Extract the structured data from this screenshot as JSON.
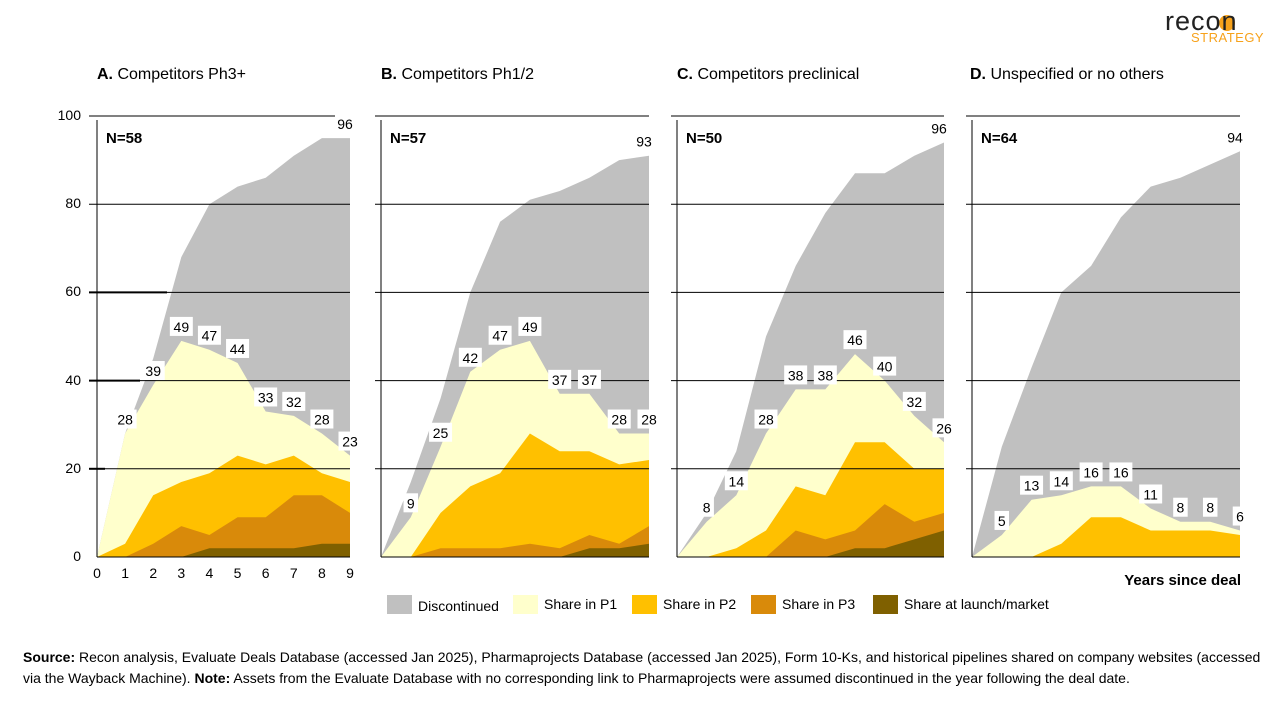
{
  "brand": {
    "wordmark": "recon",
    "tagline": "STRATEGY",
    "sun_color": "#F7A21B"
  },
  "chart_data": {
    "type": "area",
    "stacked": true,
    "x": [
      0,
      1,
      2,
      3,
      4,
      5,
      6,
      7,
      8,
      9
    ],
    "xlabel": "Years since deal",
    "ylim": [
      0,
      100
    ],
    "yticks": [
      0,
      20,
      40,
      60,
      80,
      100
    ],
    "grid": true,
    "legend_position": "bottom",
    "legend": [
      {
        "name": "Discontinued",
        "color": "#C0C0C0"
      },
      {
        "name": "Share in P1",
        "color": "#FFFFCC"
      },
      {
        "name": "Share in P2",
        "color": "#FFC000"
      },
      {
        "name": "Share in P3",
        "color": "#D98A0A"
      },
      {
        "name": "Share at launch/market",
        "color": "#7F6000"
      }
    ],
    "panels": [
      {
        "letter": "A.",
        "title": "Competitors Ph3+",
        "n_label": "N=58",
        "total": [
          0,
          28,
          45,
          68,
          80,
          84,
          86,
          91,
          95,
          95
        ],
        "active": [
          0,
          28,
          39,
          49,
          47,
          44,
          33,
          32,
          28,
          23
        ],
        "p2_and_later": [
          0,
          3,
          14,
          17,
          19,
          23,
          21,
          23,
          19,
          17
        ],
        "p3_and_later": [
          0,
          0,
          3,
          7,
          5,
          9,
          9,
          14,
          14,
          10
        ],
        "launched": [
          0,
          0,
          0,
          0,
          2,
          2,
          2,
          2,
          3,
          3
        ],
        "active_labels": [
          "",
          "28",
          "39",
          "49",
          "47",
          "44",
          "33",
          "32",
          "28",
          "23"
        ],
        "total_label": "96"
      },
      {
        "letter": "B.",
        "title": "Competitors Ph1/2",
        "n_label": "N=57",
        "total": [
          0,
          17,
          36,
          60,
          76,
          81,
          83,
          86,
          90,
          91
        ],
        "active": [
          0,
          9,
          25,
          42,
          47,
          49,
          37,
          37,
          28,
          28
        ],
        "p2_and_later": [
          0,
          0,
          10,
          16,
          19,
          28,
          24,
          24,
          21,
          22
        ],
        "p3_and_later": [
          0,
          0,
          2,
          2,
          2,
          3,
          2,
          5,
          3,
          7
        ],
        "launched": [
          0,
          0,
          0,
          0,
          0,
          0,
          0,
          2,
          2,
          3
        ],
        "active_labels": [
          "",
          "9",
          "25",
          "42",
          "47",
          "49",
          "37",
          "37",
          "28",
          "28"
        ],
        "total_label": "93"
      },
      {
        "letter": "C.",
        "title": "Competitors preclinical",
        "n_label": "N=50",
        "total": [
          0,
          10,
          24,
          50,
          66,
          78,
          87,
          87,
          91,
          94
        ],
        "active": [
          0,
          8,
          14,
          28,
          38,
          38,
          46,
          40,
          32,
          26
        ],
        "p2_and_later": [
          0,
          0,
          2,
          6,
          16,
          14,
          26,
          26,
          20,
          20
        ],
        "p3_and_later": [
          0,
          0,
          0,
          0,
          6,
          4,
          6,
          12,
          8,
          10
        ],
        "launched": [
          0,
          0,
          0,
          0,
          0,
          0,
          2,
          2,
          4,
          6
        ],
        "active_labels": [
          "",
          "8",
          "14",
          "28",
          "38",
          "38",
          "46",
          "40",
          "32",
          "26"
        ],
        "total_label": "96"
      },
      {
        "letter": "D.",
        "title": "Unspecified or no others",
        "n_label": "N=64",
        "total": [
          0,
          25,
          43,
          60,
          66,
          77,
          84,
          86,
          89,
          92
        ],
        "active": [
          0,
          5,
          13,
          14,
          16,
          16,
          11,
          8,
          8,
          6
        ],
        "p2_and_later": [
          0,
          0,
          0,
          3,
          9,
          9,
          6,
          6,
          6,
          5
        ],
        "p3_and_later": [
          0,
          0,
          0,
          0,
          0,
          0,
          0,
          0,
          0,
          0
        ],
        "launched": [
          0,
          0,
          0,
          0,
          0,
          0,
          0,
          0,
          0,
          0
        ],
        "active_labels": [
          "",
          "5",
          "13",
          "14",
          "16",
          "16",
          "11",
          "8",
          "8",
          "6"
        ],
        "total_label": "94"
      }
    ]
  },
  "source": {
    "source_label": "Source:",
    "source_text": " Recon analysis, Evaluate Deals Database (accessed Jan 2025), Pharmaprojects Database (accessed Jan 2025), Form 10-Ks, and historical pipelines shared on company websites (accessed via the Wayback Machine). ",
    "note_label": "Note:",
    "note_text": " Assets from the Evaluate Database with no corresponding link to Pharmaprojects were assumed discontinued in the year following the deal date."
  }
}
